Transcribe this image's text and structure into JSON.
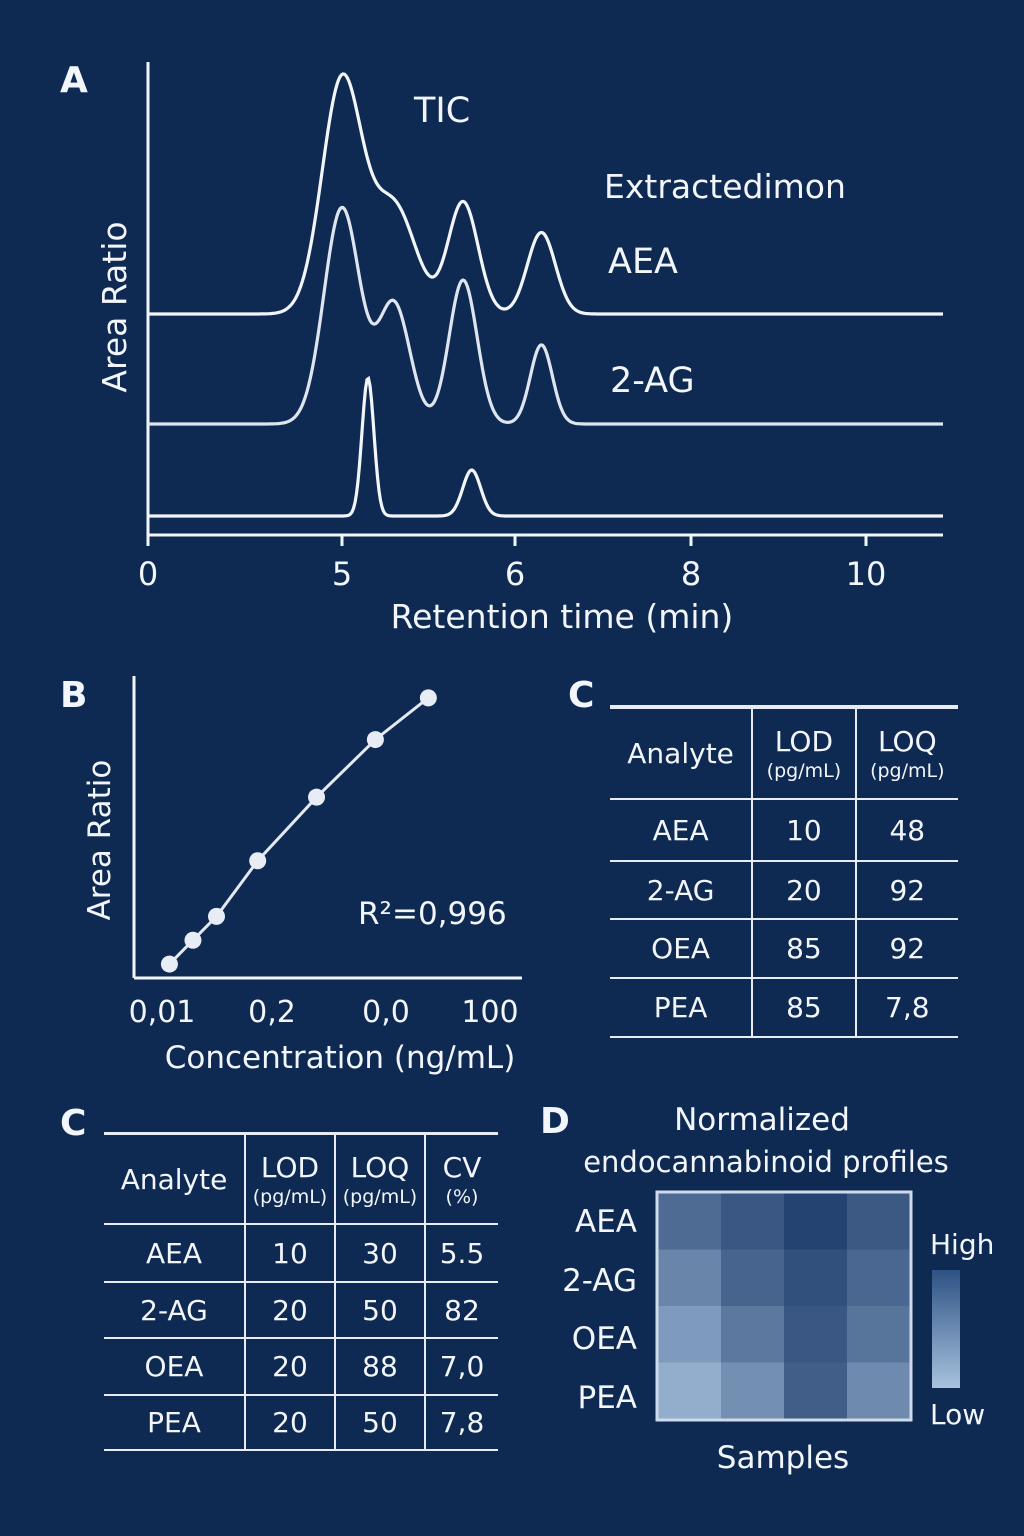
{
  "panels": {
    "a": "A",
    "b": "B",
    "c1": "C",
    "c2": "C",
    "d": "D"
  },
  "colors": {
    "background": "#0f2a52",
    "line": "#f2f5fa",
    "heat_low": "#a8c2de",
    "heat_high": "#1d3c6b"
  },
  "chart_data": [
    {
      "id": "A",
      "type": "line",
      "title": "TIC",
      "xlabel": "Retention time (min)",
      "ylabel": "Area Ratio",
      "xticks": [
        "0",
        "5",
        "6",
        "8",
        "10"
      ],
      "xtick_values": [
        0,
        5,
        6,
        8,
        10
      ],
      "xlim": [
        0,
        10.9
      ],
      "grid": false,
      "annotations": [
        "TIC",
        "Extractedimon",
        "AEA",
        "2-AG"
      ],
      "series": [
        {
          "name": "TIC",
          "baseline": 1.0,
          "peaks": [
            [
              5.0,
              1.0
            ],
            [
              5.3,
              0.46
            ],
            [
              5.7,
              0.48
            ],
            [
              6.3,
              0.35
            ]
          ]
        },
        {
          "name": "AEA",
          "baseline": 0.55,
          "peaks": [
            [
              5.0,
              0.9
            ],
            [
              5.3,
              0.5
            ],
            [
              5.7,
              0.6
            ],
            [
              6.3,
              0.33
            ]
          ]
        },
        {
          "name": "2-AG",
          "baseline": 0.0,
          "peaks": [
            [
              5.15,
              0.6
            ],
            [
              5.75,
              0.2
            ]
          ]
        }
      ]
    },
    {
      "id": "B",
      "type": "scatter",
      "xlabel": "Concentration (ng/mL)",
      "ylabel": "Area Ratio",
      "xticks": [
        "0,01",
        "0,2",
        "0,0",
        "100"
      ],
      "annotation": "R²=0,996",
      "grid": false,
      "points": [
        [
          0.5,
          0.3
        ],
        [
          0.9,
          0.9
        ],
        [
          1.3,
          1.5
        ],
        [
          2.0,
          2.9
        ],
        [
          3.0,
          4.5
        ],
        [
          4.0,
          5.95
        ],
        [
          4.9,
          7.0
        ]
      ],
      "xlim": [
        0,
        6
      ],
      "ylim": [
        0,
        7.6
      ]
    },
    {
      "id": "D",
      "type": "heatmap",
      "title": "Normalized",
      "subtitle": "endocannabinoid profiles",
      "rows": [
        "AEA",
        "2-AG",
        "OEA",
        "PEA"
      ],
      "xlabel": "Samples",
      "legend": {
        "high": "High",
        "low": "Low"
      },
      "values": [
        [
          0.65,
          0.8,
          0.95,
          0.78
        ],
        [
          0.45,
          0.7,
          0.85,
          0.68
        ],
        [
          0.3,
          0.55,
          0.8,
          0.58
        ],
        [
          0.15,
          0.38,
          0.75,
          0.42
        ]
      ]
    }
  ],
  "table1": {
    "headers": [
      "Analyte",
      "LOD",
      "LOQ"
    ],
    "units": [
      "",
      "(pg/mL)",
      "(pg/mL)"
    ],
    "rows": [
      [
        "AEA",
        "10",
        "48"
      ],
      [
        "2-AG",
        "20",
        "92"
      ],
      [
        "OEA",
        "85",
        "92"
      ],
      [
        "PEA",
        "85",
        "7,8"
      ]
    ]
  },
  "table2": {
    "headers": [
      "Analyte",
      "LOD",
      "LOQ",
      "CV"
    ],
    "units": [
      "",
      "(pg/mL)",
      "(pg/mL)",
      "(%)"
    ],
    "rows": [
      [
        "AEA",
        "10",
        "30",
        "5.5"
      ],
      [
        "2-AG",
        "20",
        "50",
        "82"
      ],
      [
        "OEA",
        "20",
        "88",
        "7,0"
      ],
      [
        "PEA",
        "20",
        "50",
        "7,8"
      ]
    ]
  }
}
